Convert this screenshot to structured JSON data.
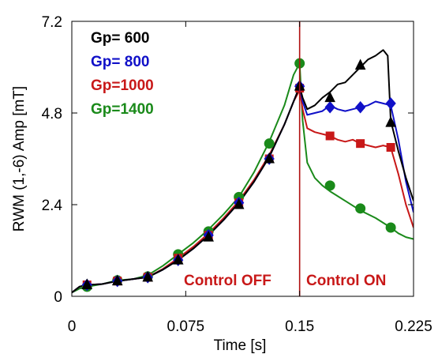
{
  "chart_data": {
    "type": "line",
    "title": "",
    "xlabel": "Time [s]",
    "ylabel": "RWM (1,-6) Amp [mT]",
    "xlim": [
      0,
      0.225
    ],
    "ylim": [
      0,
      7.2
    ],
    "xticks": [
      0,
      0.075,
      0.15,
      0.225
    ],
    "xtick_labels": [
      "0",
      "0.075",
      "0.15",
      "0.225"
    ],
    "yticks": [
      0,
      2.4,
      4.8,
      7.2
    ],
    "ytick_labels": [
      "0",
      "2.4",
      "4.8",
      "7.2"
    ],
    "grid": false,
    "legend_position": "top-left",
    "vertical_line": {
      "x": 0.15,
      "color": "#b01010"
    },
    "annotations": [
      {
        "text": "Control OFF",
        "color": "#c81818"
      },
      {
        "text": "Control ON",
        "color": "#c81818"
      }
    ],
    "series": [
      {
        "name": "Gp= 600",
        "color": "#000000",
        "marker": "triangle",
        "x": [
          0,
          0.005,
          0.01,
          0.02,
          0.03,
          0.04,
          0.05,
          0.06,
          0.07,
          0.08,
          0.09,
          0.1,
          0.11,
          0.12,
          0.13,
          0.14,
          0.146,
          0.15,
          0.152,
          0.155,
          0.16,
          0.165,
          0.17,
          0.175,
          0.18,
          0.185,
          0.19,
          0.195,
          0.2,
          0.205,
          0.208,
          0.21,
          0.215,
          0.22,
          0.225
        ],
        "y": [
          0.1,
          0.25,
          0.3,
          0.32,
          0.4,
          0.45,
          0.5,
          0.7,
          0.95,
          1.25,
          1.6,
          2.0,
          2.45,
          3.0,
          3.65,
          4.5,
          5.1,
          5.5,
          5.2,
          4.9,
          5.0,
          5.2,
          5.35,
          5.55,
          5.6,
          5.8,
          6.0,
          6.2,
          6.3,
          6.45,
          6.3,
          4.6,
          3.8,
          3.1,
          2.5
        ],
        "marker_x": [
          0.01,
          0.03,
          0.05,
          0.07,
          0.09,
          0.11,
          0.13,
          0.15,
          0.17,
          0.19,
          0.21
        ],
        "marker_y": [
          0.3,
          0.4,
          0.5,
          0.95,
          1.55,
          2.4,
          3.6,
          5.5,
          5.2,
          6.05,
          4.55
        ]
      },
      {
        "name": "Gp= 800",
        "color": "#1010c8",
        "marker": "diamond",
        "x": [
          0,
          0.005,
          0.01,
          0.02,
          0.03,
          0.04,
          0.05,
          0.06,
          0.07,
          0.08,
          0.09,
          0.1,
          0.11,
          0.12,
          0.13,
          0.14,
          0.146,
          0.15,
          0.152,
          0.155,
          0.16,
          0.165,
          0.17,
          0.175,
          0.18,
          0.185,
          0.19,
          0.195,
          0.2,
          0.205,
          0.21,
          0.215,
          0.22,
          0.225
        ],
        "y": [
          0.1,
          0.25,
          0.3,
          0.32,
          0.4,
          0.45,
          0.5,
          0.7,
          0.95,
          1.25,
          1.6,
          2.0,
          2.45,
          3.0,
          3.65,
          4.5,
          5.1,
          5.5,
          5.1,
          4.75,
          4.8,
          4.85,
          5.0,
          4.9,
          4.85,
          4.9,
          4.95,
          5.0,
          5.1,
          5.05,
          5.0,
          4.1,
          3.0,
          2.2
        ],
        "marker_x": [
          0.01,
          0.03,
          0.05,
          0.07,
          0.09,
          0.11,
          0.13,
          0.15,
          0.17,
          0.19,
          0.21
        ],
        "marker_y": [
          0.3,
          0.4,
          0.5,
          0.95,
          1.6,
          2.45,
          3.6,
          5.5,
          4.95,
          4.95,
          5.05
        ]
      },
      {
        "name": "Gp=1000",
        "color": "#c81818",
        "marker": "square",
        "x": [
          0,
          0.005,
          0.01,
          0.02,
          0.03,
          0.04,
          0.05,
          0.06,
          0.07,
          0.08,
          0.09,
          0.1,
          0.11,
          0.12,
          0.13,
          0.14,
          0.146,
          0.15,
          0.152,
          0.155,
          0.16,
          0.165,
          0.17,
          0.175,
          0.18,
          0.185,
          0.19,
          0.195,
          0.2,
          0.205,
          0.21,
          0.215,
          0.22,
          0.225
        ],
        "y": [
          0.1,
          0.25,
          0.3,
          0.32,
          0.4,
          0.45,
          0.5,
          0.72,
          1.0,
          1.3,
          1.65,
          2.05,
          2.5,
          3.05,
          3.7,
          4.5,
          5.1,
          5.4,
          4.9,
          4.4,
          4.3,
          4.25,
          4.2,
          4.1,
          4.05,
          4.1,
          4.0,
          3.95,
          3.9,
          3.95,
          3.9,
          3.2,
          2.4,
          1.8
        ],
        "marker_x": [
          0.01,
          0.03,
          0.05,
          0.07,
          0.09,
          0.11,
          0.13,
          0.15,
          0.17,
          0.19,
          0.21
        ],
        "marker_y": [
          0.3,
          0.4,
          0.5,
          1.0,
          1.6,
          2.45,
          3.6,
          5.45,
          4.2,
          4.0,
          3.9
        ]
      },
      {
        "name": "Gp=1400",
        "color": "#1a8a1a",
        "marker": "circle",
        "x": [
          0,
          0.005,
          0.01,
          0.02,
          0.03,
          0.04,
          0.05,
          0.06,
          0.07,
          0.08,
          0.09,
          0.1,
          0.11,
          0.12,
          0.13,
          0.14,
          0.146,
          0.15,
          0.152,
          0.155,
          0.16,
          0.165,
          0.17,
          0.18,
          0.19,
          0.2,
          0.21,
          0.215,
          0.22,
          0.225
        ],
        "y": [
          0.1,
          0.2,
          0.25,
          0.32,
          0.42,
          0.45,
          0.55,
          0.8,
          1.1,
          1.4,
          1.75,
          2.15,
          2.6,
          3.25,
          4.05,
          5.0,
          5.8,
          6.1,
          4.6,
          3.5,
          3.1,
          2.9,
          2.75,
          2.5,
          2.25,
          2.05,
          1.8,
          1.65,
          1.55,
          1.5
        ],
        "marker_x": [
          0.01,
          0.03,
          0.05,
          0.07,
          0.09,
          0.11,
          0.13,
          0.15,
          0.17,
          0.19,
          0.21
        ],
        "marker_y": [
          0.25,
          0.42,
          0.52,
          1.1,
          1.7,
          2.6,
          4.0,
          6.1,
          2.9,
          2.3,
          1.8
        ]
      }
    ]
  }
}
